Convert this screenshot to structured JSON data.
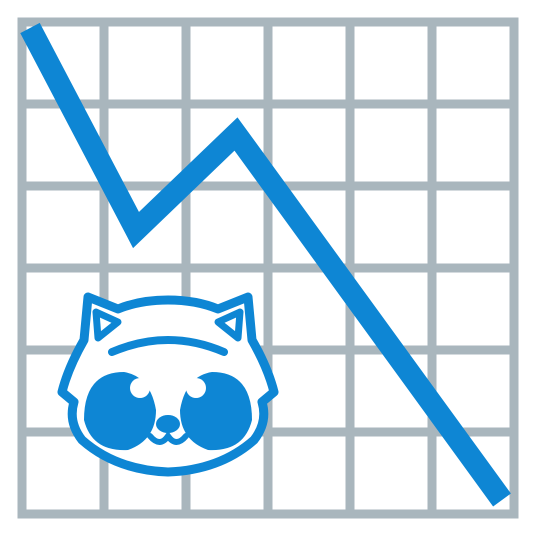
{
  "icon": {
    "semantic_name": "raccoon-chart-decreasing-icon",
    "grid_columns": 6,
    "grid_rows": 6
  },
  "colors": {
    "grid": "#a9b6bd",
    "trend_line": "#0e86d4",
    "raccoon_fill": "#0e86d4",
    "background": "#ffffff"
  }
}
